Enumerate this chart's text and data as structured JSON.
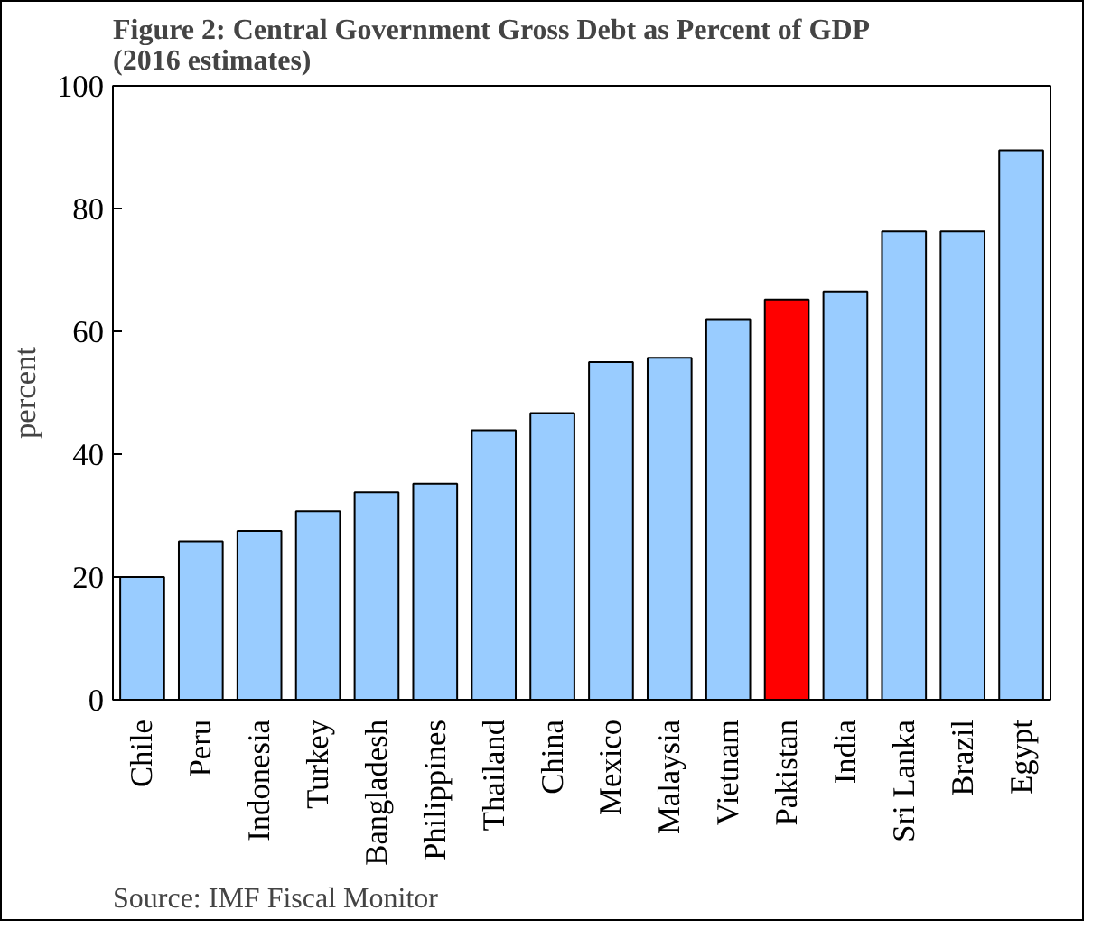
{
  "chart_data": {
    "type": "bar",
    "title": "Figure 2: Central Government Gross Debt as Percent of GDP\n(2016 estimates)",
    "ylabel": "percent",
    "categories": [
      "Chile",
      "Peru",
      "Indonesia",
      "Turkey",
      "Bangladesh",
      "Philippines",
      "Thailand",
      "China",
      "Mexico",
      "Malaysia",
      "Vietnam",
      "Pakistan",
      "India",
      "Sri Lanka",
      "Brazil",
      "Egypt"
    ],
    "values": [
      20,
      25.8,
      27.5,
      30.7,
      33.8,
      35.2,
      43.9,
      46.7,
      55,
      55.7,
      62,
      65.2,
      66.5,
      76.3,
      76.3,
      89.5
    ],
    "colors": [
      "#99ccff",
      "#99ccff",
      "#99ccff",
      "#99ccff",
      "#99ccff",
      "#99ccff",
      "#99ccff",
      "#99ccff",
      "#99ccff",
      "#99ccff",
      "#99ccff",
      "#ff0000",
      "#99ccff",
      "#99ccff",
      "#99ccff",
      "#99ccff"
    ],
    "ylim": [
      0,
      100
    ],
    "yticks": [
      0,
      20,
      40,
      60,
      80,
      100
    ],
    "grid": false,
    "annotations": [
      "Source: IMF Fiscal Monitor"
    ]
  }
}
